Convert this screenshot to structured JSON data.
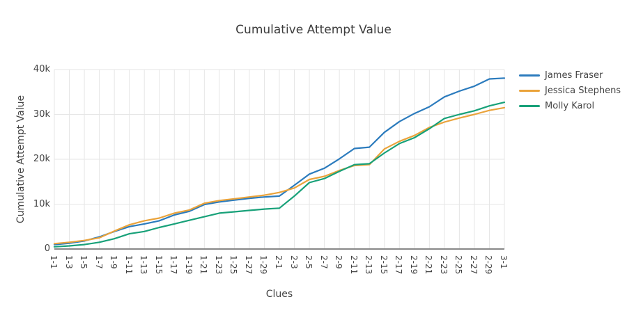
{
  "chart": {
    "title": "Cumulative Attempt Value",
    "xlabel": "Clues",
    "ylabel": "Cumulative Attempt Value"
  },
  "chart_data": {
    "type": "line",
    "title": "Cumulative Attempt Value",
    "xlabel": "Clues",
    "ylabel": "Cumulative Attempt Value",
    "categories": [
      "1-1",
      "1-3",
      "1-5",
      "1-7",
      "1-9",
      "1-11",
      "1-13",
      "1-15",
      "1-17",
      "1-19",
      "1-21",
      "1-23",
      "1-25",
      "1-27",
      "1-29",
      "2-1",
      "2-3",
      "2-5",
      "2-7",
      "2-9",
      "2-11",
      "2-13",
      "2-15",
      "2-17",
      "2-19",
      "2-21",
      "2-23",
      "2-25",
      "2-27",
      "2-29",
      "3-1"
    ],
    "series": [
      {
        "name": "James Fraser",
        "color": "#2B7BBD",
        "values": [
          1000,
          1300,
          1800,
          2700,
          3900,
          5000,
          5600,
          6300,
          7600,
          8400,
          9900,
          10500,
          10900,
          11300,
          11600,
          11800,
          14200,
          16700,
          18000,
          20100,
          22400,
          22700,
          26000,
          28400,
          30200,
          31700,
          33900,
          35200,
          36300,
          37900,
          38100
        ]
      },
      {
        "name": "Jessica Stephens",
        "color": "#EAA33B",
        "values": [
          1200,
          1500,
          1900,
          2500,
          4000,
          5400,
          6300,
          6900,
          8000,
          8700,
          10200,
          10800,
          11200,
          11600,
          12000,
          12600,
          13600,
          15500,
          16200,
          17500,
          18600,
          18800,
          22300,
          24000,
          25300,
          27100,
          28300,
          29200,
          30000,
          30900,
          31500
        ]
      },
      {
        "name": "Molly Karol",
        "color": "#18A179",
        "values": [
          500,
          700,
          1000,
          1500,
          2300,
          3400,
          3900,
          4800,
          5600,
          6400,
          7200,
          8000,
          8300,
          8600,
          8900,
          9100,
          11800,
          14800,
          15700,
          17300,
          18800,
          19000,
          21400,
          23500,
          24800,
          26800,
          29100,
          30000,
          30800,
          31900,
          32700
        ]
      }
    ],
    "ylim": [
      0,
      40000
    ],
    "yticks": {
      "values": [
        0,
        10000,
        20000,
        30000,
        40000
      ],
      "labels": [
        "0",
        "10k",
        "20k",
        "30k",
        "40k"
      ]
    },
    "xtick_angle": 90,
    "legend_position": "right",
    "grid": true
  },
  "colors": {
    "background": "#FFFFFF",
    "text": "#444444",
    "grid": "#E6E6E6",
    "axis_line": "#888888"
  }
}
